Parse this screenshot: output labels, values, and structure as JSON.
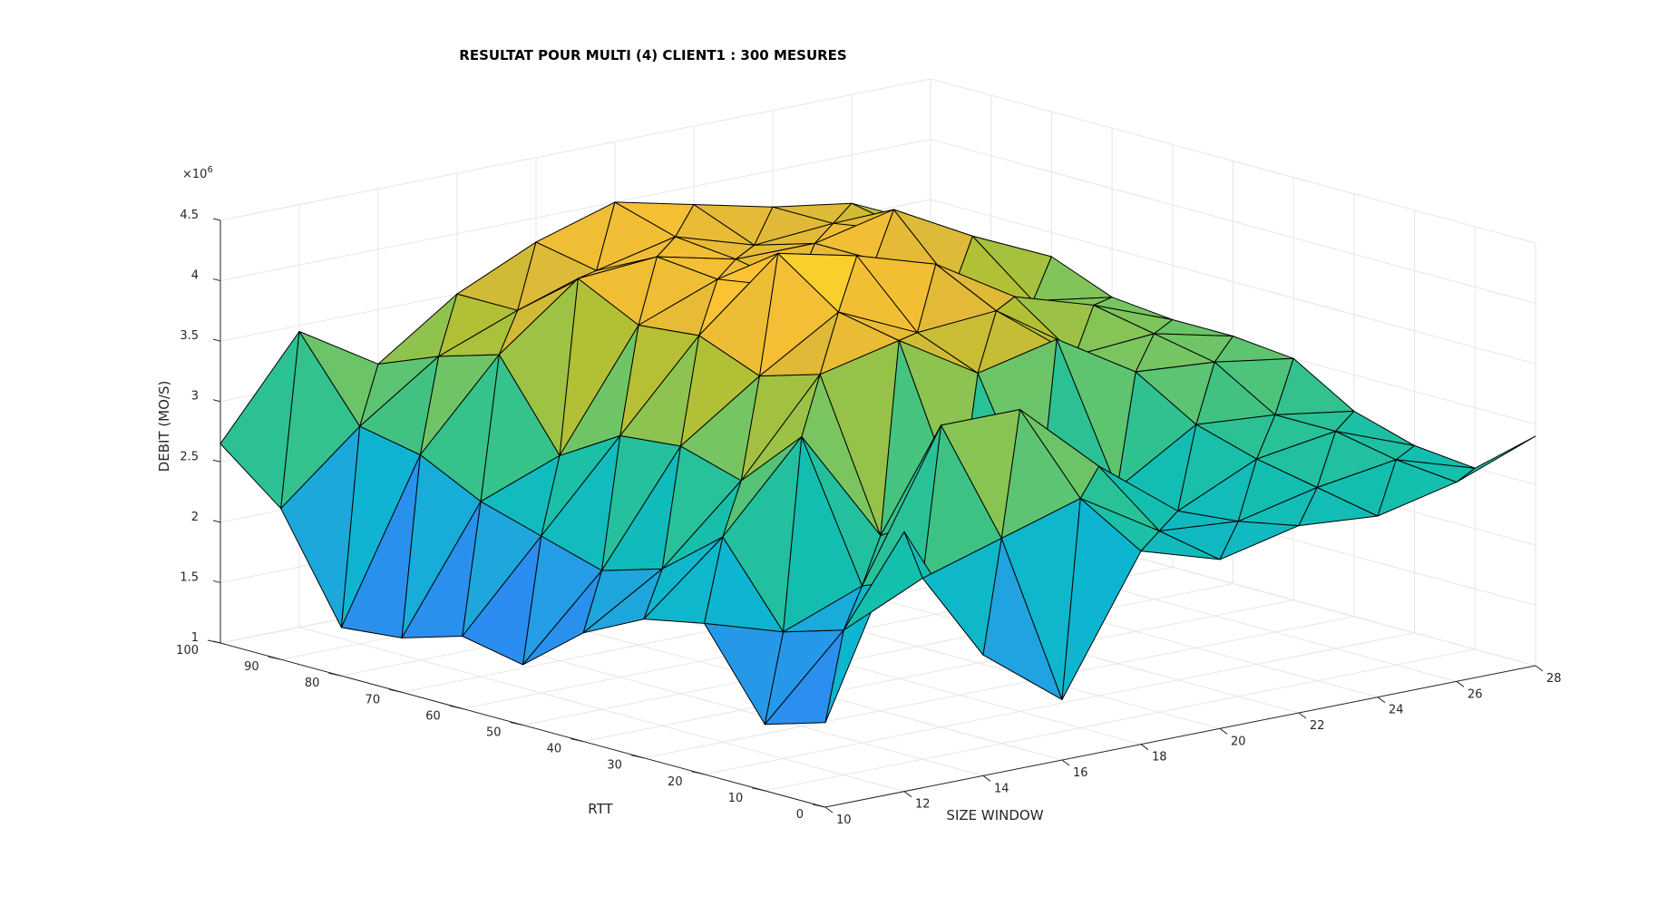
{
  "chart_data": {
    "type": "surface",
    "title": "RESULTAT POUR MULTI (4) CLIENT1 : 300 MESURES",
    "xlabel": "SIZE WINDOW",
    "ylabel": "RTT",
    "zlabel": "DEBIT (MO/S)",
    "zexponent_label": "×10",
    "zexponent": "6",
    "xlim": [
      10,
      28
    ],
    "ylim": [
      0,
      100
    ],
    "zlim": [
      1000000,
      4500000
    ],
    "xticks": [
      "10",
      "12",
      "14",
      "16",
      "18",
      "20",
      "22",
      "24",
      "26",
      "28"
    ],
    "yticks": [
      "0",
      "10",
      "20",
      "30",
      "40",
      "50",
      "60",
      "70",
      "80",
      "90",
      "100"
    ],
    "zticks": [
      "1",
      "1.5",
      "2",
      "2.5",
      "3",
      "3.5",
      "4",
      "4.5"
    ],
    "grid": true,
    "colormap": "parula",
    "colormap_stops": [
      "#3e26a8",
      "#4a3cd8",
      "#3d6ff7",
      "#2a8ef0",
      "#21a3e0",
      "#0db6cf",
      "#14bfad",
      "#3ac286",
      "#77c561",
      "#b2c034",
      "#e1b937",
      "#fcc233",
      "#f5de22",
      "#f9fb15"
    ],
    "rtt": [
      0,
      10,
      20,
      30,
      40,
      50,
      60,
      70,
      80,
      90,
      100
    ],
    "size_window": [
      10,
      12,
      14,
      16,
      18,
      20,
      22,
      24,
      26,
      28
    ],
    "debit": [
      [
        1700000,
        3150000,
        2000000,
        1500000,
        2600000,
        2400000,
        2550000,
        2500000,
        2650000,
        2900000
      ],
      [
        1550000,
        2200000,
        2500000,
        2700000,
        2900000,
        2500000,
        2450000,
        2600000,
        2700000,
        2500000
      ],
      [
        2250000,
        2050000,
        2300000,
        3500000,
        3500000,
        2900000,
        2400000,
        2700000,
        2800000,
        2550000
      ],
      [
        2150000,
        2700000,
        3400000,
        2450000,
        2550000,
        2350000,
        2450000,
        2850000,
        2800000,
        2700000
      ],
      [
        1900000,
        2300000,
        2900000,
        3650000,
        3800000,
        3400000,
        3550000,
        3150000,
        3100000,
        3000000
      ],
      [
        1500000,
        2150000,
        3050000,
        3500000,
        3900000,
        3600000,
        3650000,
        3150000,
        3200000,
        3050000
      ],
      [
        1600000,
        2300000,
        3000000,
        3700000,
        4250000,
        4100000,
        3900000,
        3500000,
        3300000,
        3050000
      ],
      [
        1450000,
        2450000,
        2700000,
        3650000,
        3900000,
        3700000,
        3800000,
        3450000,
        3200000,
        3100000
      ],
      [
        1400000,
        2700000,
        3400000,
        3900000,
        3950000,
        3800000,
        3800000,
        3950000,
        3600000,
        3300000
      ],
      [
        2250000,
        2800000,
        3250000,
        3500000,
        3700000,
        3850000,
        3650000,
        3700000,
        3500000,
        3200000
      ],
      [
        2650000,
        3450000,
        3050000,
        3500000,
        3800000,
        4000000,
        3850000,
        3700000,
        3600000,
        3300000
      ]
    ]
  }
}
